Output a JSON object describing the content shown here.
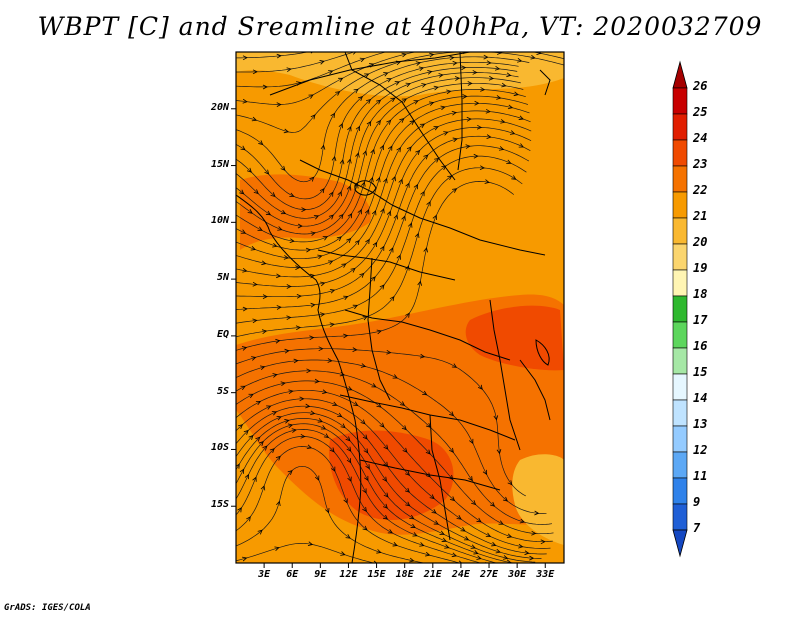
{
  "title": "WBPT [C] and Sreamline at 400hPa, VT: 2020032709",
  "footer": "GrADS: IGES/COLA",
  "lat_labels": [
    {
      "text": "20N",
      "lat": 20
    },
    {
      "text": "15N",
      "lat": 15
    },
    {
      "text": "10N",
      "lat": 10
    },
    {
      "text": "5N",
      "lat": 5
    },
    {
      "text": "EQ",
      "lat": 0
    },
    {
      "text": "5S",
      "lat": -5
    },
    {
      "text": "10S",
      "lat": -10
    },
    {
      "text": "15S",
      "lat": -15
    }
  ],
  "lon_labels": [
    {
      "text": "3E",
      "lon": 3
    },
    {
      "text": "6E",
      "lon": 6
    },
    {
      "text": "9E",
      "lon": 9
    },
    {
      "text": "12E",
      "lon": 12
    },
    {
      "text": "15E",
      "lon": 15
    },
    {
      "text": "18E",
      "lon": 18
    },
    {
      "text": "21E",
      "lon": 21
    },
    {
      "text": "24E",
      "lon": 24
    },
    {
      "text": "27E",
      "lon": 27
    },
    {
      "text": "30E",
      "lon": 30
    },
    {
      "text": "33E",
      "lon": 33
    }
  ],
  "map_extent": {
    "lon_min": 0,
    "lon_max": 35,
    "lat_min": -20,
    "lat_max": 25
  },
  "colorbar": {
    "levels": [
      "26",
      "25",
      "24",
      "23",
      "22",
      "21",
      "20",
      "19",
      "18",
      "17",
      "16",
      "15",
      "14",
      "13",
      "12",
      "11",
      "9",
      "7"
    ],
    "colors": [
      "#a50000",
      "#c80000",
      "#e11e00",
      "#f04a00",
      "#f57200",
      "#f79a00",
      "#f9b830",
      "#fbd56e",
      "#fff5b3",
      "#2eb82e",
      "#5cd65c",
      "#a6e8a6",
      "#e6f7ff",
      "#bfe3ff",
      "#94cbff",
      "#5ca8f5",
      "#2f82ea",
      "#1f5fd6",
      "#1448c2"
    ]
  },
  "field_colors": {
    "wbpt_19_20": "#fbd56e",
    "wbpt_20_21": "#f9b830",
    "wbpt_21_22": "#f79a00",
    "wbpt_22_23": "#f57200",
    "wbpt_23_24": "#f04a00"
  }
}
